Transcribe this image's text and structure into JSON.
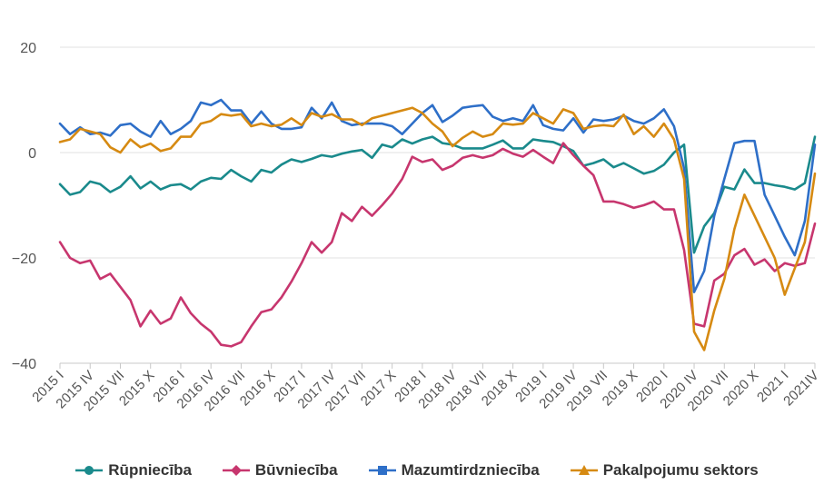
{
  "chart_data": {
    "type": "line",
    "title": "",
    "xlabel": "",
    "ylabel": "",
    "ylim": [
      -40,
      20
    ],
    "yticks": [
      20,
      0,
      -20,
      -40
    ],
    "ytick_labels": [
      "20",
      "0",
      "−20",
      "−40"
    ],
    "grid": true,
    "legend_position": "bottom",
    "x": [
      "2015 I",
      "2015 II",
      "2015 III",
      "2015 IV",
      "2015 V",
      "2015 VI",
      "2015 VII",
      "2015 VIII",
      "2015 IX",
      "2015 X",
      "2015 XI",
      "2015 XII",
      "2016 I",
      "2016 II",
      "2016 III",
      "2016 IV",
      "2016 V",
      "2016 VI",
      "2016 VII",
      "2016 VIII",
      "2016 IX",
      "2016 X",
      "2016 XI",
      "2016 XII",
      "2017 I",
      "2017 II",
      "2017 III",
      "2017 IV",
      "2017 V",
      "2017 VI",
      "2017 VII",
      "2017 VIII",
      "2017 IX",
      "2017 X",
      "2017 XI",
      "2017 XII",
      "2018 I",
      "2018 II",
      "2018 III",
      "2018 IV",
      "2018 V",
      "2018 VI",
      "2018 VII",
      "2018 VIII",
      "2018 IX",
      "2018 X",
      "2018 XI",
      "2018 XII",
      "2019 I",
      "2019 II",
      "2019 III",
      "2019 IV",
      "2019 V",
      "2019 VI",
      "2019 VII",
      "2019 VIII",
      "2019 IX",
      "2019 X",
      "2019 XI",
      "2019 XII",
      "2020 I",
      "2020 II",
      "2020 III",
      "2020 IV",
      "2020 V",
      "2020 VI",
      "2020 VII",
      "2020 VIII",
      "2020 IX",
      "2020 X",
      "2020 XI",
      "2020 XII",
      "2021 I",
      "2021 II",
      "2021 III",
      "2021 IV"
    ],
    "xtick_labels": [
      "2015 I",
      "2015 IV",
      "2015 VII",
      "2015 X",
      "2016 I",
      "2016 IV",
      "2016 VII",
      "2016 X",
      "2017 I",
      "2017 IV",
      "2017 VII",
      "2017 X",
      "2018 I",
      "2018 IV",
      "2018 VII",
      "2018 X",
      "2019 I",
      "2019 IV",
      "2019 VII",
      "2019 X",
      "2020 I",
      "2020 IV",
      "2020 VII",
      "2020 X",
      "2021 I",
      "2021IV"
    ],
    "series": [
      {
        "name": "Rūpniecība",
        "color": "#1a8a8c",
        "marker": "circle",
        "values": [
          -6,
          -8,
          -7.5,
          -5.5,
          -6,
          -7.5,
          -6.5,
          -4.5,
          -6.8,
          -5.5,
          -7,
          -6.2,
          -6,
          -7,
          -5.5,
          -4.8,
          -5,
          -3.3,
          -4.5,
          -5.5,
          -3.3,
          -3.8,
          -2.3,
          -1.3,
          -1.8,
          -1.2,
          -0.5,
          -0.8,
          -0.2,
          0.2,
          0.5,
          -1,
          1.5,
          1,
          2.5,
          1.7,
          2.5,
          3,
          1.8,
          1.5,
          0.8,
          0.8,
          0.8,
          1.5,
          2.3,
          0.8,
          0.8,
          2.5,
          2.2,
          2,
          1.2,
          0.3,
          -2.5,
          -2,
          -1.3,
          -2.8,
          -2,
          -3,
          -4,
          -3.5,
          -2.3,
          0,
          1.5,
          -19,
          -14,
          -11.5,
          -6.5,
          -7,
          -3.2,
          -5.8,
          -5.8,
          -6.2,
          -6.5,
          -7,
          -5.8,
          3
        ]
      },
      {
        "name": "Būvniecība",
        "color": "#c7366e",
        "marker": "diamond",
        "values": [
          -17,
          -20,
          -21,
          -20.5,
          -24,
          -23,
          -25.5,
          -28,
          -33,
          -30,
          -32.5,
          -31.5,
          -27.5,
          -30.5,
          -32.5,
          -34,
          -36.5,
          -36.8,
          -36,
          -33,
          -30.3,
          -29.8,
          -27.5,
          -24.5,
          -21,
          -17,
          -19,
          -17,
          -11.5,
          -13,
          -10.3,
          -12,
          -10,
          -7.8,
          -5,
          -0.8,
          -1.8,
          -1.3,
          -3.3,
          -2.5,
          -1,
          -0.5,
          -1,
          -0.5,
          0.7,
          -0.2,
          -0.8,
          0.5,
          -0.8,
          -2,
          1.8,
          -0.5,
          -2.5,
          -4.3,
          -9.3,
          -9.3,
          -9.8,
          -10.5,
          -10,
          -9.3,
          -10.8,
          -10.8,
          -18.5,
          -32.5,
          -33,
          -24.3,
          -23,
          -19.5,
          -18.3,
          -21.3,
          -20.3,
          -22.5,
          -21,
          -21.5,
          -21,
          -13.5
        ]
      },
      {
        "name": "Mazumtirdzniecība",
        "color": "#2e6fc8",
        "marker": "square",
        "values": [
          5.5,
          3.5,
          4.8,
          3.5,
          3.8,
          3.2,
          5.2,
          5.5,
          4,
          3,
          6,
          3.5,
          4.5,
          6,
          9.5,
          9,
          10,
          8,
          8,
          5.5,
          7.8,
          5.5,
          4.5,
          4.5,
          4.8,
          8.5,
          6.5,
          9.5,
          6,
          5.2,
          5.5,
          5.5,
          5.5,
          5,
          3.5,
          5.5,
          7.5,
          9,
          5.8,
          7,
          8.5,
          8.8,
          9,
          6.8,
          6,
          6.5,
          6,
          9,
          5.2,
          4.5,
          4.2,
          6.5,
          3.8,
          6.3,
          6,
          6.3,
          7,
          6,
          5.5,
          6.5,
          8.2,
          5,
          -3,
          -26.5,
          -22.5,
          -12,
          -5,
          1.8,
          2.2,
          2.2,
          -8,
          -12,
          -16,
          -19.5,
          -13,
          1.5
        ]
      },
      {
        "name": "Pakalpojumu sektors",
        "color": "#d68a12",
        "marker": "triangle",
        "values": [
          2,
          2.5,
          4.5,
          4,
          3.5,
          1,
          0,
          2.5,
          1,
          1.7,
          0.3,
          0.8,
          3,
          3,
          5.5,
          6,
          7.3,
          7,
          7.3,
          5,
          5.5,
          5,
          5.3,
          6.5,
          5.2,
          7.5,
          6.8,
          7.3,
          6.3,
          6.3,
          5.2,
          6.5,
          7,
          7.5,
          8,
          8.5,
          7.5,
          5.5,
          4,
          1.2,
          2.8,
          4,
          3,
          3.5,
          5.5,
          5.3,
          5.5,
          7.5,
          6.5,
          5.5,
          8.2,
          7.5,
          4.5,
          5,
          5.2,
          5,
          7.2,
          3.5,
          5,
          3,
          5.5,
          2.5,
          -5,
          -34,
          -37.5,
          -30,
          -24,
          -14.5,
          -8,
          -12,
          -16,
          -20,
          -27,
          -22,
          -17,
          -4
        ]
      }
    ]
  }
}
